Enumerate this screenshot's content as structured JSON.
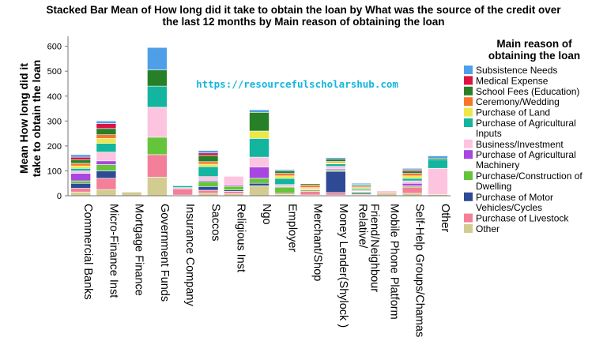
{
  "chart_data": {
    "type": "bar",
    "stacked": true,
    "title_lines": [
      "Stacked Bar Mean of How long did it take to obtain the loan by What was the source of the credit over",
      "the last 12 months by Main reason of obtaining the loan"
    ],
    "ylabel_lines": [
      "Mean How long did it",
      "take to obtain the loan"
    ],
    "ylim": [
      0,
      640
    ],
    "yticks": [
      0,
      100,
      200,
      300,
      400,
      500,
      600
    ],
    "grid": false,
    "watermark": "https://resourcefulscholarshub.com",
    "legend_position": "right",
    "legend_title_lines": [
      "Main reason of",
      "obtaining the loan"
    ],
    "categories": [
      "Commercial Banks",
      "Micro-Finance Inst",
      "Mortgage  Finance",
      "Government Funds",
      "Insurance Company",
      "Saccos",
      "Religious Inst",
      "Ngo",
      "Employer",
      "Merchant/Shop",
      "Money Lender(Shylock )",
      "Relative/ Friend/Neighbour",
      "Mobile Phone Platform",
      "Self-Help Groups/Chamas",
      "Other"
    ],
    "category_label_lines": [
      [
        "Commercial Banks"
      ],
      [
        "Micro-Finance Inst"
      ],
      [
        "Mortgage  Finance"
      ],
      [
        "Government Funds"
      ],
      [
        "Insurance Company"
      ],
      [
        "Saccos"
      ],
      [
        "Religious Inst"
      ],
      [
        "Ngo"
      ],
      [
        "Employer"
      ],
      [
        "Merchant/Shop"
      ],
      [
        "Money Lender(Shylock )"
      ],
      [
        "Relative/",
        "Friend/Neighbour"
      ],
      [
        "Mobile Phone Platform"
      ],
      [
        "Self-Help Groups/Chamas"
      ],
      [
        "Other"
      ]
    ],
    "series": [
      {
        "name": "Other",
        "label_lines": [
          "Other"
        ],
        "color": "#d2cc91",
        "values": [
          15,
          25,
          15,
          75,
          3,
          10,
          8,
          40,
          5,
          3,
          3,
          3,
          10,
          10,
          5
        ]
      },
      {
        "name": "Purchase of Livestock",
        "label_lines": [
          "Purchase of Livestock"
        ],
        "color": "#f47f98",
        "values": [
          15,
          45,
          0,
          90,
          25,
          12,
          10,
          0,
          5,
          15,
          10,
          3,
          5,
          25,
          0
        ]
      },
      {
        "name": "Purchase of Motor Vehicles/Cycles",
        "label_lines": [
          "Purchase of Motor",
          "Vehicles/Cycles"
        ],
        "color": "#2e4a94",
        "values": [
          20,
          30,
          0,
          0,
          0,
          15,
          5,
          10,
          0,
          0,
          85,
          5,
          0,
          0,
          0
        ]
      },
      {
        "name": "Purchase/Construction of Dwelling",
        "label_lines": [
          "Purchase/Construction of",
          "Dwelling"
        ],
        "color": "#64c53a",
        "values": [
          10,
          25,
          0,
          70,
          0,
          20,
          15,
          20,
          25,
          5,
          5,
          5,
          0,
          5,
          0
        ]
      },
      {
        "name": "Purchase of Agricultural Machinery",
        "label_lines": [
          "Purchase of Agricultural",
          "Machinery"
        ],
        "color": "#a846e0",
        "values": [
          30,
          15,
          0,
          0,
          0,
          5,
          5,
          45,
          0,
          0,
          5,
          2,
          0,
          10,
          0
        ]
      },
      {
        "name": "Business/Investment",
        "label_lines": [
          "Business/Investment"
        ],
        "color": "#fdc4e0",
        "values": [
          10,
          35,
          0,
          120,
          5,
          15,
          35,
          40,
          10,
          5,
          10,
          5,
          5,
          10,
          105
        ]
      },
      {
        "name": "Purchase of Agricultural Inputs",
        "label_lines": [
          "Purchase of Agricultural",
          "Inputs"
        ],
        "color": "#13b59e",
        "values": [
          10,
          35,
          0,
          85,
          7,
          40,
          0,
          75,
          25,
          0,
          10,
          5,
          0,
          10,
          35
        ]
      },
      {
        "name": "Purchase of Land",
        "label_lines": [
          "Purchase of Land"
        ],
        "color": "#ece84a",
        "values": [
          10,
          20,
          0,
          0,
          0,
          10,
          0,
          30,
          10,
          5,
          5,
          5,
          0,
          10,
          0
        ]
      },
      {
        "name": "Ceremony/Wedding",
        "label_lines": [
          "Ceremony/Wedding"
        ],
        "color": "#f8762c",
        "values": [
          10,
          15,
          0,
          0,
          0,
          10,
          0,
          0,
          10,
          10,
          5,
          5,
          0,
          10,
          0
        ]
      },
      {
        "name": "School Fees (Education)",
        "label_lines": [
          "School Fees (Education)"
        ],
        "color": "#277f28",
        "values": [
          15,
          25,
          0,
          65,
          0,
          25,
          0,
          75,
          10,
          5,
          10,
          5,
          0,
          10,
          5
        ]
      },
      {
        "name": "Medical Expense",
        "label_lines": [
          "Medical Expense"
        ],
        "color": "#dc1242",
        "values": [
          10,
          20,
          0,
          0,
          0,
          10,
          0,
          0,
          0,
          0,
          0,
          2,
          0,
          5,
          0
        ]
      },
      {
        "name": "Subsistence Needs",
        "label_lines": [
          "Subsistence Needs"
        ],
        "color": "#4f9fe8",
        "values": [
          10,
          10,
          0,
          90,
          0,
          10,
          0,
          10,
          5,
          0,
          5,
          5,
          0,
          5,
          10
        ]
      }
    ]
  }
}
